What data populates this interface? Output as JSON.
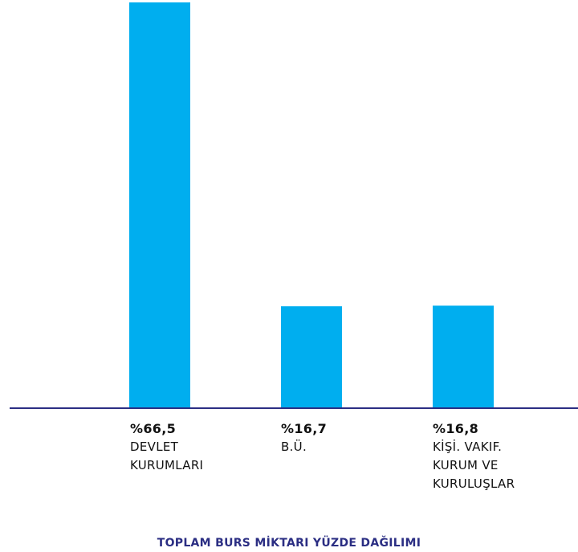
{
  "chart_data": {
    "type": "bar",
    "title": "TOPLAM BURS MİKTARI YÜZDE DAĞILIMI",
    "categories": [
      {
        "value_label": "%66,5",
        "lines": [
          "DEVLET",
          "KURUMLARI"
        ]
      },
      {
        "value_label": "%16,7",
        "lines": [
          "B.Ü."
        ]
      },
      {
        "value_label": "%16,8",
        "lines": [
          "KİŞİ. VAKIF.",
          "KURUM VE",
          "KURULUŞLAR"
        ]
      }
    ],
    "values": [
      66.5,
      16.7,
      16.8
    ],
    "ylim": [
      0,
      66.5
    ],
    "grid": false,
    "legend": "none",
    "bar_color": "#00AEEF",
    "axis_color": "#2B2E83",
    "title_color": "#2B2E83"
  }
}
